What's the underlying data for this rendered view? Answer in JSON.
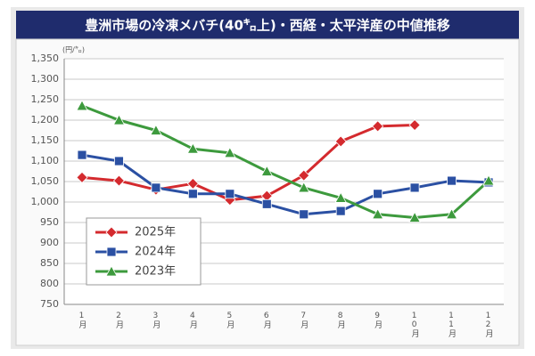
{
  "chart_data": {
    "type": "line",
    "title": "豊洲市場の冷凍メバチ(40㌔上)・西経・太平洋産の中値推移",
    "y_label": "(円/㌔)",
    "categories": [
      "1月",
      "2月",
      "3月",
      "4月",
      "5月",
      "6月",
      "7月",
      "8月",
      "9月",
      "10月",
      "11月",
      "12月"
    ],
    "series": [
      {
        "name": "2025年",
        "color": "#d42a2e",
        "marker": "diamond",
        "values": [
          1060,
          1052,
          1030,
          1045,
          1005,
          1015,
          1065,
          1148,
          1185,
          1188,
          null,
          null
        ]
      },
      {
        "name": "2024年",
        "color": "#2b50a3",
        "marker": "square",
        "values": [
          1115,
          1100,
          1035,
          1020,
          1020,
          995,
          970,
          978,
          1020,
          1035,
          1052,
          1048
        ]
      },
      {
        "name": "2023年",
        "color": "#3d9a3d",
        "marker": "triangle",
        "values": [
          1235,
          1200,
          1175,
          1130,
          1120,
          1075,
          1035,
          1010,
          970,
          962,
          970,
          1052
        ]
      }
    ],
    "ylim": [
      750,
      1350
    ],
    "yticks": [
      750,
      800,
      850,
      900,
      950,
      {
        "value": 1000,
        "label": "1,000"
      },
      {
        "value": 1050,
        "label": "1,050"
      },
      {
        "value": 1100,
        "label": "1,100"
      },
      {
        "value": 1150,
        "label": "1,150"
      },
      {
        "value": 1200,
        "label": "1,200"
      },
      {
        "value": 1250,
        "label": "1,250"
      },
      {
        "value": 1300,
        "label": "1,300"
      },
      {
        "value": 1350,
        "label": "1,350"
      }
    ],
    "grid": true,
    "legend": "lower-left"
  }
}
